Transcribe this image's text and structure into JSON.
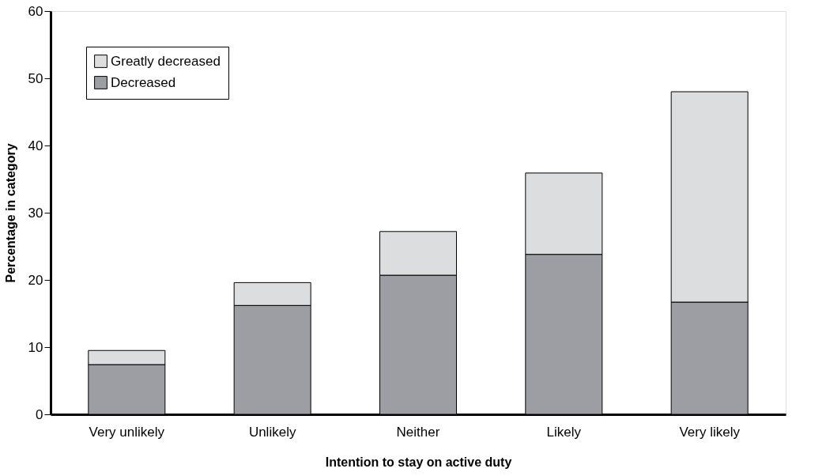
{
  "chart_data": {
    "type": "bar",
    "stacked": true,
    "xlabel": "Intention to stay on active duty",
    "ylabel": "Percentage in category",
    "categories": [
      "Very unlikely",
      "Unlikely",
      "Neither",
      "Likely",
      "Very likely"
    ],
    "series": [
      {
        "name": "Decreased",
        "color": "#9d9ea3",
        "values": [
          7.4,
          16.2,
          20.7,
          23.8,
          16.7
        ]
      },
      {
        "name": "Greatly decreased",
        "color": "#dcdddf",
        "values": [
          2.1,
          3.4,
          6.5,
          12.1,
          31.3
        ]
      }
    ],
    "ylim": [
      0,
      60
    ],
    "yticks": [
      0,
      10,
      20,
      30,
      40,
      50,
      60
    ],
    "grid": false,
    "legend": "top left"
  }
}
